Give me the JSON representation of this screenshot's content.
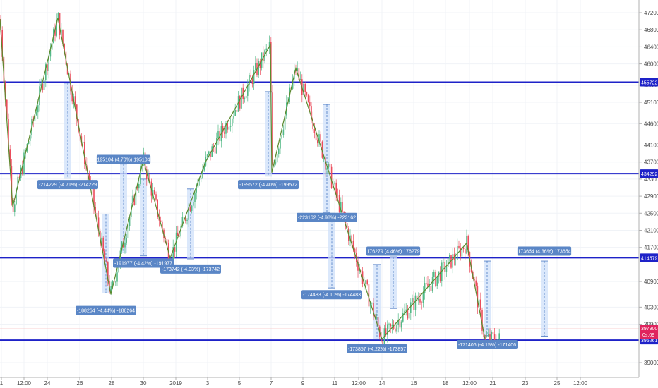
{
  "chart_data": {
    "type": "candlestick",
    "title": "",
    "xlabel": "",
    "ylabel": "",
    "ylim": [
      388000,
      472500
    ],
    "grid": true,
    "y_ticks": [
      "472000",
      "468000",
      "464000",
      "460000",
      "455000",
      "451000",
      "446000",
      "441000",
      "437000",
      "433000",
      "429000",
      "425000",
      "421000",
      "417000",
      "409000",
      "403000",
      "399000",
      "390000"
    ],
    "x_ticks": [
      "1",
      "12:00",
      "24",
      "26",
      "28",
      "30",
      "2019",
      "3",
      "5",
      "7",
      "9",
      "11",
      "12:00",
      "14",
      "16",
      "18",
      "12:00",
      "21",
      "23",
      "25",
      "12:00"
    ],
    "horizontal_levels": [
      {
        "label": "455722",
        "value": 455722,
        "color": "#1e22c8"
      },
      {
        "label": "434292",
        "value": 434292,
        "color": "#1e22c8"
      },
      {
        "label": "414579",
        "value": 414579,
        "color": "#1e22c8"
      },
      {
        "label": "395261",
        "value": 395261,
        "color": "#1e22c8"
      }
    ],
    "price_marker": {
      "label": "397900",
      "sub": "0s:09",
      "value": 397900,
      "color": "#e0245e"
    },
    "zigzag": [
      {
        "x": 0,
        "y": 470500
      },
      {
        "x": 18,
        "y": 426500
      },
      {
        "x": 82,
        "y": 470800
      },
      {
        "x": 157,
        "y": 406000
      },
      {
        "x": 203,
        "y": 437500
      },
      {
        "x": 241,
        "y": 414500
      },
      {
        "x": 291,
        "y": 437000
      },
      {
        "x": 383,
        "y": 464500
      },
      {
        "x": 385,
        "y": 434500
      },
      {
        "x": 419,
        "y": 459000
      },
      {
        "x": 470,
        "y": 432500
      },
      {
        "x": 541,
        "y": 395500
      },
      {
        "x": 661,
        "y": 418000
      },
      {
        "x": 687,
        "y": 395500
      }
    ],
    "measures": [
      {
        "text": "-214229 (-4.71%) -214229",
        "x": 96,
        "y_top": 455500,
        "y_bot": 433200,
        "label_y": 431800
      },
      {
        "text": "195104 (4.70%) 195104",
        "x": 175,
        "y_top": 436500,
        "y_bot": 415700,
        "label_y": 437700
      },
      {
        "text": "-191977 (-4.42%) -191977",
        "x": 203,
        "y_top": 433000,
        "y_bot": 415000,
        "label_y": 413400
      },
      {
        "text": "-173742 (-4.03%) -173742",
        "x": 270,
        "y_top": 430700,
        "y_bot": 414300,
        "label_y": 412000
      },
      {
        "text": "-188264 (-4.44%) -188264",
        "x": 150,
        "y_top": 424800,
        "y_bot": 406300,
        "label_y": 402300
      },
      {
        "text": "-199572 (-4.40%) -199572",
        "x": 380,
        "y_top": 453500,
        "y_bot": 433700,
        "label_y": 431800
      },
      {
        "text": "-223162 (-4.98%) -223162",
        "x": 463,
        "y_top": 450500,
        "y_bot": 425200,
        "label_y": 424100
      },
      {
        "text": "-174483 (-4.10%) -174483",
        "x": 470,
        "y_top": 425000,
        "y_bot": 407500,
        "label_y": 406000
      },
      {
        "text": "176279 (4.46%) 176279",
        "x": 557,
        "y_top": 414800,
        "y_bot": 402700,
        "label_y": 416200
      },
      {
        "text": "-173857 (-4.22%) -173857",
        "x": 534,
        "y_top": 413000,
        "y_bot": 395500,
        "label_y": 393300
      },
      {
        "text": "173654 (4.36%) 173654",
        "x": 771,
        "y_top": 413800,
        "y_bot": 396200,
        "label_y": 416200
      },
      {
        "text": "-171406 (-4.15%) -171406",
        "x": 690,
        "y_top": 413800,
        "y_bot": 396300,
        "label_y": 394300
      }
    ]
  }
}
